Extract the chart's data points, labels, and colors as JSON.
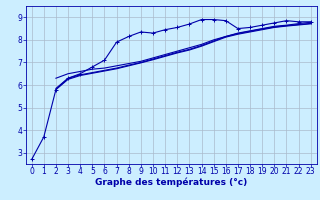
{
  "xlabel": "Graphe des températures (°c)",
  "background_color": "#cceeff",
  "grid_color": "#aabbcc",
  "line_color": "#0000aa",
  "xlim": [
    -0.5,
    23.5
  ],
  "ylim": [
    2.5,
    9.5
  ],
  "xticks": [
    0,
    1,
    2,
    3,
    4,
    5,
    6,
    7,
    8,
    9,
    10,
    11,
    12,
    13,
    14,
    15,
    16,
    17,
    18,
    19,
    20,
    21,
    22,
    23
  ],
  "yticks": [
    3,
    4,
    5,
    6,
    7,
    8,
    9
  ],
  "line1_x": [
    0,
    1,
    2,
    3,
    4,
    5,
    6,
    7,
    8,
    9,
    10,
    11,
    12,
    13,
    14,
    15,
    16,
    17,
    18,
    19,
    20,
    21,
    22,
    23
  ],
  "line1_y": [
    2.7,
    3.7,
    5.8,
    6.3,
    6.5,
    6.8,
    7.1,
    7.9,
    8.15,
    8.35,
    8.3,
    8.45,
    8.55,
    8.7,
    8.9,
    8.9,
    8.85,
    8.5,
    8.55,
    8.65,
    8.75,
    8.85,
    8.8,
    8.8
  ],
  "line2_x": [
    2,
    3,
    4,
    5,
    6,
    7,
    8,
    9,
    10,
    11,
    12,
    13,
    14,
    15,
    16,
    17,
    18,
    19,
    20,
    21,
    22,
    23
  ],
  "line2_y": [
    6.3,
    6.5,
    6.6,
    6.7,
    6.75,
    6.85,
    6.95,
    7.05,
    7.2,
    7.35,
    7.5,
    7.65,
    7.8,
    8.0,
    8.15,
    8.3,
    8.4,
    8.5,
    8.6,
    8.65,
    8.72,
    8.78
  ],
  "line3_x": [
    2,
    3,
    4,
    5,
    6,
    7,
    8,
    9,
    10,
    11,
    12,
    13,
    14,
    15,
    16,
    17,
    18,
    19,
    20,
    21,
    22,
    23
  ],
  "line3_y": [
    5.85,
    6.3,
    6.45,
    6.55,
    6.65,
    6.75,
    6.88,
    7.0,
    7.15,
    7.3,
    7.45,
    7.58,
    7.75,
    7.95,
    8.15,
    8.28,
    8.38,
    8.48,
    8.57,
    8.63,
    8.68,
    8.73
  ],
  "line4_x": [
    2,
    3,
    4,
    5,
    6,
    7,
    8,
    9,
    10,
    11,
    12,
    13,
    14,
    15,
    16,
    17,
    18,
    19,
    20,
    21,
    22,
    23
  ],
  "line4_y": [
    5.8,
    6.25,
    6.42,
    6.52,
    6.62,
    6.72,
    6.85,
    6.98,
    7.12,
    7.27,
    7.42,
    7.55,
    7.72,
    7.92,
    8.12,
    8.25,
    8.35,
    8.45,
    8.55,
    8.61,
    8.66,
    8.71
  ],
  "tick_fontsize": 5.5,
  "xlabel_fontsize": 6.5,
  "linewidth": 0.8,
  "marker_size": 2.5
}
